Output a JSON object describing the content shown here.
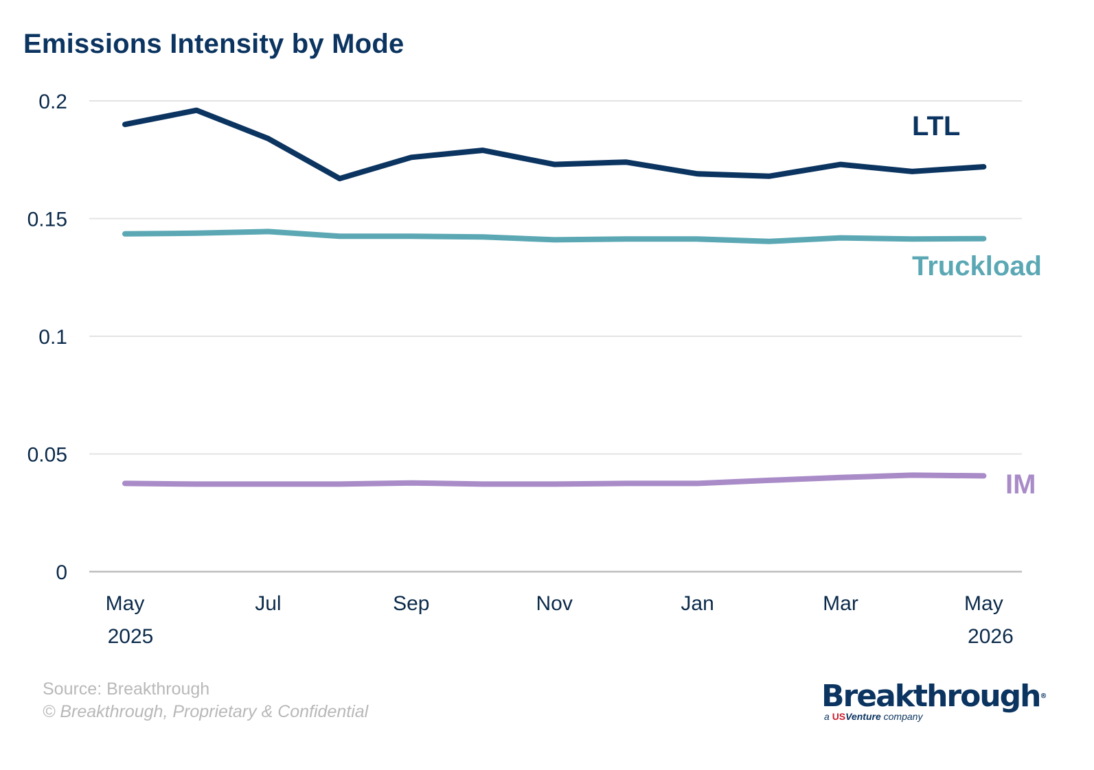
{
  "title": "Emissions Intensity by Mode",
  "footer": {
    "source": "Source: Breakthrough",
    "copyright": "© Breakthrough, Proprietary & Confidential"
  },
  "logo": {
    "word": "Breakthrough",
    "registered": "®",
    "sub_prefix": "a",
    "sub_us": "US",
    "sub_venture": "Venture",
    "sub_suffix": "company"
  },
  "colors": {
    "title": "#0b3460",
    "ltl": "#0b3460",
    "truckload": "#5ba8b4",
    "im": "#a98bc8",
    "grid": "#e3e3e3",
    "axis": "#bdbdbd",
    "footer": "#b8b8b8"
  },
  "chart_data": {
    "type": "line",
    "title": "Emissions Intensity by Mode",
    "x": [
      "May 2025",
      "Jun 2025",
      "Jul 2025",
      "Aug 2025",
      "Sep 2025",
      "Oct 2025",
      "Nov 2025",
      "Dec 2025",
      "Jan 2026",
      "Feb 2026",
      "Mar 2026",
      "Apr 2026",
      "May 2026"
    ],
    "x_tick_labels": [
      {
        "month": "May",
        "year": "2025"
      },
      {
        "month": "Jul",
        "year": ""
      },
      {
        "month": "Sep",
        "year": ""
      },
      {
        "month": "Nov",
        "year": ""
      },
      {
        "month": "Jan",
        "year": ""
      },
      {
        "month": "Mar",
        "year": ""
      },
      {
        "month": "May",
        "year": "2026"
      }
    ],
    "y_ticks": [
      "0",
      "0.05",
      "0.1",
      "0.15",
      "0.2"
    ],
    "ylim": [
      0,
      0.2
    ],
    "grid": true,
    "series": [
      {
        "name": "LTL",
        "key": "ltl",
        "values": [
          0.19,
          0.196,
          0.184,
          0.167,
          0.176,
          0.179,
          0.173,
          0.174,
          0.169,
          0.168,
          0.173,
          0.17,
          0.172
        ]
      },
      {
        "name": "Truckload",
        "key": "truckload",
        "values": [
          0.1435,
          0.1438,
          0.1445,
          0.1425,
          0.1425,
          0.1422,
          0.141,
          0.1413,
          0.1413,
          0.1403,
          0.1418,
          0.1413,
          0.1415
        ]
      },
      {
        "name": "IM",
        "key": "im",
        "values": [
          0.0375,
          0.0372,
          0.0372,
          0.0372,
          0.0377,
          0.0372,
          0.0372,
          0.0375,
          0.0375,
          0.0388,
          0.04,
          0.041,
          0.0407
        ]
      }
    ]
  }
}
